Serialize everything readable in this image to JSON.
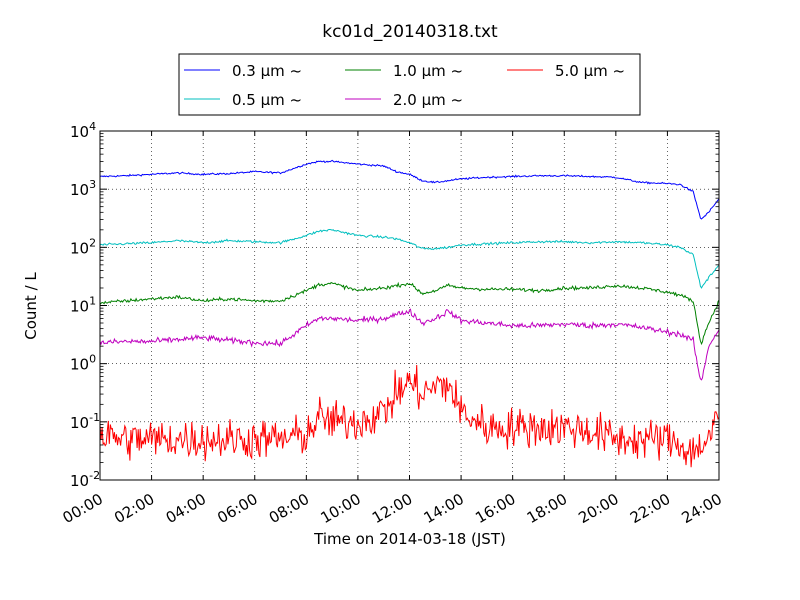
{
  "chart_data": {
    "type": "line",
    "title": "kc01d_20140318.txt",
    "xlabel": "Time on 2014-03-18 (JST)",
    "ylabel": "Count / L",
    "yscale": "log",
    "xlim": [
      0,
      24
    ],
    "ylim": [
      0.01,
      10000
    ],
    "grid": true,
    "legend": {
      "position": "top",
      "columns": 3
    },
    "x_ticks": [
      "00:00",
      "02:00",
      "04:00",
      "06:00",
      "08:00",
      "10:00",
      "12:00",
      "14:00",
      "16:00",
      "18:00",
      "20:00",
      "22:00",
      "24:00"
    ],
    "y_ticks": [
      {
        "value": 0.01,
        "base": "10",
        "exp": "-2"
      },
      {
        "value": 0.1,
        "base": "10",
        "exp": "-1"
      },
      {
        "value": 1,
        "base": "10",
        "exp": "0"
      },
      {
        "value": 10,
        "base": "10",
        "exp": "1"
      },
      {
        "value": 100,
        "base": "10",
        "exp": "2"
      },
      {
        "value": 1000,
        "base": "10",
        "exp": "3"
      },
      {
        "value": 10000,
        "base": "10",
        "exp": "4"
      }
    ],
    "x": [
      0,
      1,
      2,
      3,
      4,
      5,
      6,
      7,
      8,
      8.5,
      9,
      10,
      11,
      11.5,
      12,
      12.5,
      13,
      13.5,
      14,
      15,
      16,
      17,
      18,
      19,
      20,
      21,
      22,
      22.5,
      23,
      23.3,
      23.6,
      24
    ],
    "series": [
      {
        "name": "0.3 μm ~",
        "color": "#0000ff",
        "noise": 0.015,
        "values": [
          1650,
          1700,
          1800,
          1900,
          1800,
          1850,
          2000,
          1900,
          2700,
          3000,
          3000,
          2700,
          2500,
          2000,
          1800,
          1400,
          1300,
          1400,
          1500,
          1600,
          1650,
          1700,
          1700,
          1650,
          1600,
          1300,
          1250,
          1200,
          900,
          300,
          400,
          680
        ]
      },
      {
        "name": "0.5 μm ~",
        "color": "#00bfbf",
        "noise": 0.02,
        "values": [
          110,
          115,
          120,
          130,
          120,
          130,
          125,
          120,
          160,
          190,
          200,
          160,
          150,
          140,
          120,
          95,
          95,
          100,
          110,
          115,
          120,
          125,
          125,
          120,
          125,
          120,
          110,
          100,
          75,
          20,
          30,
          50
        ]
      },
      {
        "name": "1.0 μm ~",
        "color": "#008000",
        "noise": 0.03,
        "values": [
          11,
          12,
          13,
          14,
          12,
          13,
          12,
          12,
          18,
          23,
          24,
          18,
          20,
          22,
          24,
          16,
          18,
          22,
          20,
          19,
          19,
          18,
          20,
          20,
          22,
          20,
          17,
          15,
          12,
          2.2,
          5,
          12
        ]
      },
      {
        "name": "2.0 μm ~",
        "color": "#bf00bf",
        "noise": 0.05,
        "values": [
          2.3,
          2.4,
          2.4,
          2.6,
          2.8,
          2.5,
          2.3,
          2.2,
          4.5,
          6,
          6,
          5.5,
          6,
          7,
          8,
          5,
          6,
          8,
          5.5,
          5,
          4.5,
          4.5,
          4.8,
          4.5,
          4.8,
          4.2,
          3.5,
          3.2,
          2.5,
          0.45,
          2,
          4
        ]
      },
      {
        "name": "5.0 μm ~",
        "color": "#ff0000",
        "noise": 0.35,
        "values": [
          0.06,
          0.05,
          0.05,
          0.05,
          0.05,
          0.05,
          0.05,
          0.05,
          0.06,
          0.12,
          0.1,
          0.1,
          0.15,
          0.3,
          0.5,
          0.3,
          0.4,
          0.45,
          0.15,
          0.08,
          0.08,
          0.08,
          0.08,
          0.07,
          0.05,
          0.05,
          0.05,
          0.04,
          0.03,
          0.04,
          0.05,
          0.12
        ]
      }
    ]
  }
}
